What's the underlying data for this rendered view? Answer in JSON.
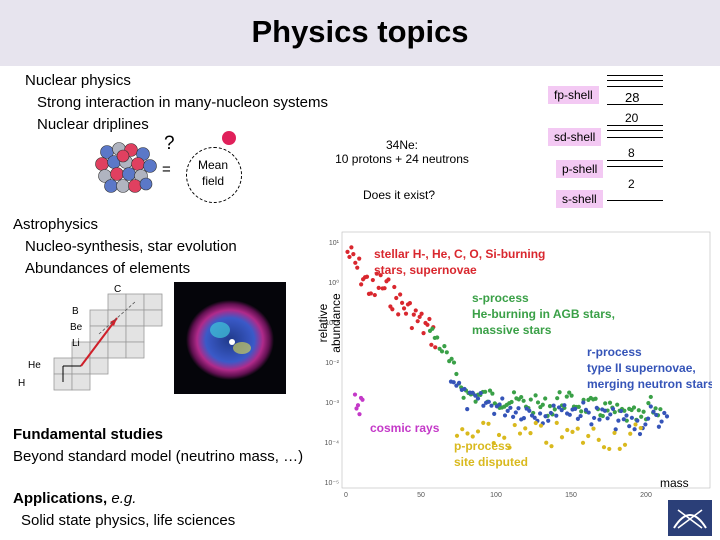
{
  "title": "Physics topics",
  "nuclear": {
    "heading": "Nuclear physics",
    "line1": "Strong interaction in many-nucleon systems",
    "line2": "Nuclear driplines",
    "question": "?",
    "equals": "=",
    "mean_field_line1": "Mean",
    "mean_field_line2": "field",
    "ne34_line1": "34Ne:",
    "ne34_line2": "10 protons + 24 neutrons",
    "exist": "Does it exist?"
  },
  "shells": {
    "labels": [
      "fp-shell",
      "sd-shell",
      "p-shell",
      "s-shell"
    ],
    "magic": [
      "28",
      "20",
      "8",
      "2"
    ]
  },
  "astro": {
    "heading": "Astrophysics",
    "line1": "Nucleo-synthesis, star evolution",
    "line2": "Abundances of elements",
    "diagram_labels": [
      "C",
      "B",
      "Be",
      "Li",
      "He",
      "H"
    ]
  },
  "fundamental": {
    "heading": "Fundamental studies",
    "line1": "Beyond standard model (neutrino mass, …)"
  },
  "applications": {
    "heading": "Applications,",
    "heading_italic": "e.g.",
    "line1": "Solid state physics, life sciences"
  },
  "chart_data": {
    "type": "scatter",
    "ylabel": "relative abundance",
    "xlabel": "mass",
    "x_ticks": [
      "0",
      "50",
      "100",
      "150",
      "200"
    ],
    "y_ticks": [
      "10⁻⁵",
      "10⁻⁴",
      "10⁻³",
      "10⁻²",
      "10⁻¹",
      "10⁰",
      "10¹"
    ],
    "xlim": [
      0,
      240
    ],
    "annotations": [
      {
        "text": "stellar H-, He, C, O, Si-burning",
        "color": "#d9272e"
      },
      {
        "text": "stars, supernovae",
        "color": "#d9272e"
      },
      {
        "text": "s-process",
        "color": "#3aa047"
      },
      {
        "text": "He-burning in AGB stars,",
        "color": "#3aa047"
      },
      {
        "text": "massive stars",
        "color": "#3aa047"
      },
      {
        "text": "r-process",
        "color": "#3554b8"
      },
      {
        "text": "type II supernovae,",
        "color": "#3554b8"
      },
      {
        "text": "merging neutron stars",
        "color": "#3554b8"
      },
      {
        "text": "cosmic rays",
        "color": "#c439c8"
      },
      {
        "text": "p-process",
        "color": "#d9b91e"
      },
      {
        "text": "site disputed",
        "color": "#d9b91e"
      }
    ]
  },
  "colors": {
    "title_bar": "#e7e4ee",
    "shell_label_bg": "#f3c9f3",
    "stellar": "#d9272e",
    "s_process": "#3aa047",
    "r_process": "#3554b8",
    "cosmic": "#c439c8",
    "p_process": "#d9b91e"
  }
}
